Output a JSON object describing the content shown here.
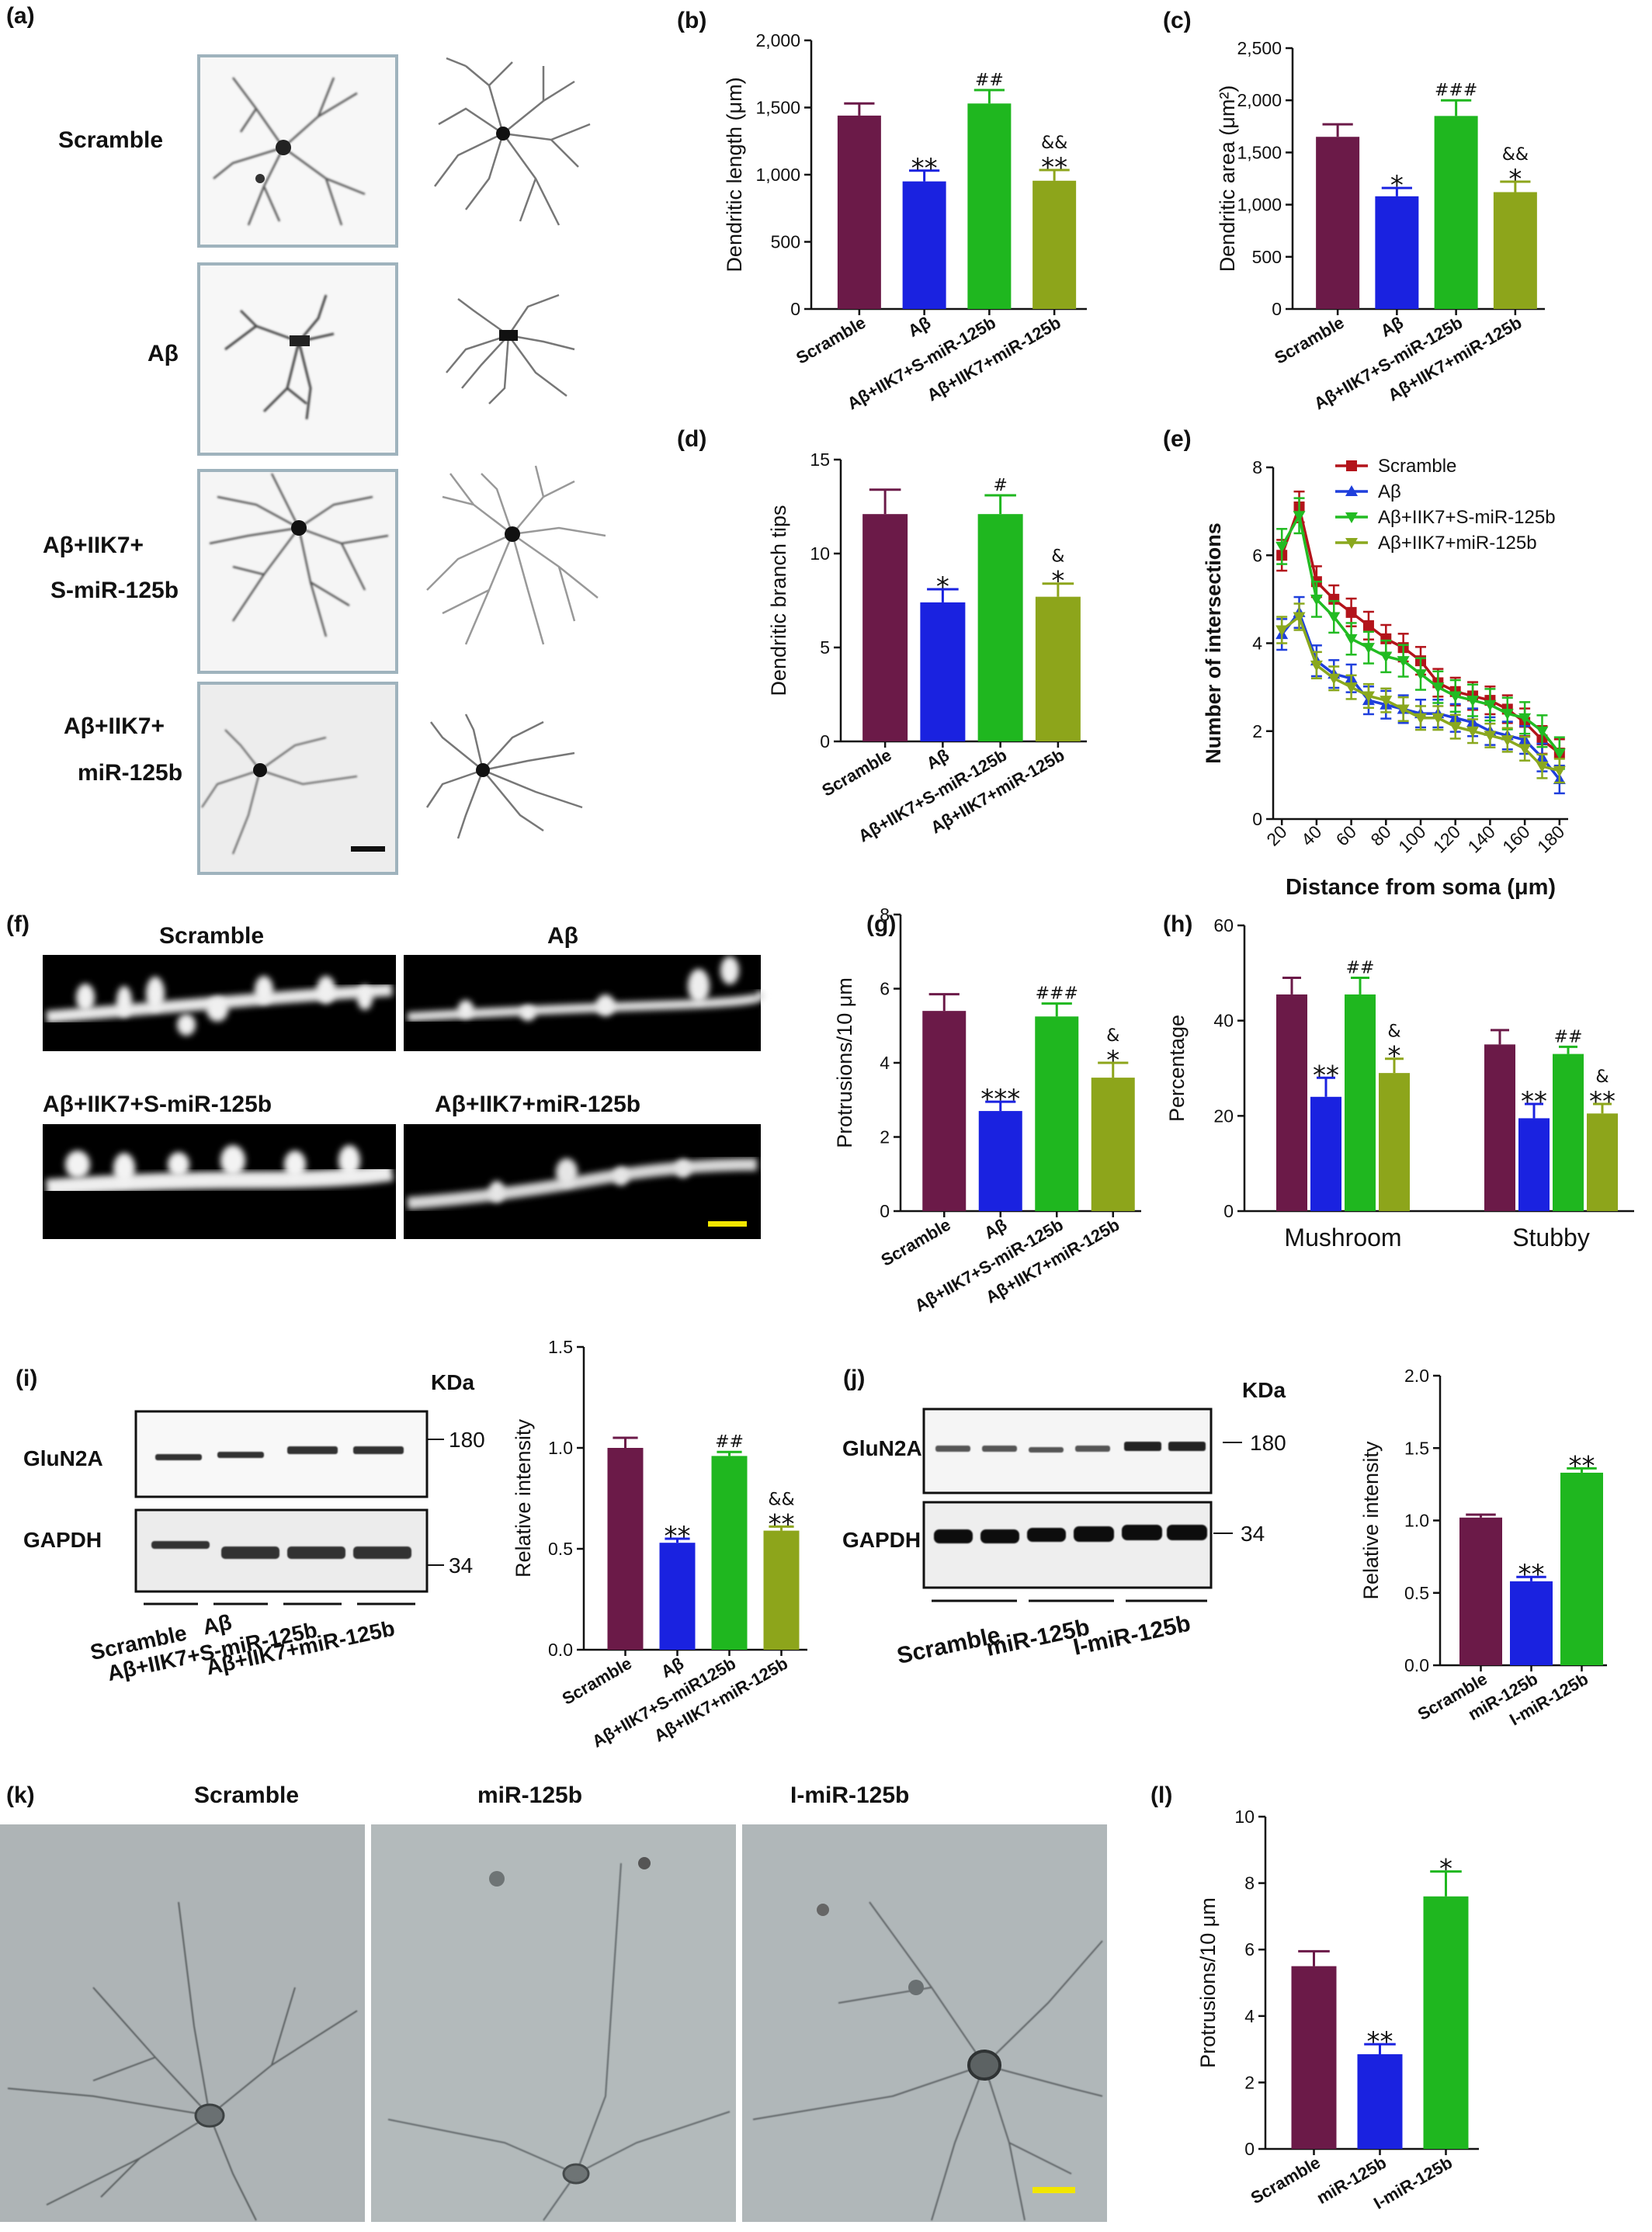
{
  "colors": {
    "scramble": "#6b1a48",
    "abeta": "#1a22e0",
    "abeta_iik7_s": "#1fb71f",
    "abeta_iik7_mir": "#8da51b",
    "line_scramble": "#b3141b",
    "line_abeta": "#1f3fdc",
    "line_s": "#22bb22",
    "line_mir": "#8aa81e",
    "scalebar_yellow": "#f2e600"
  },
  "panel_labels": [
    "(a)",
    "(b)",
    "(c)",
    "(d)",
    "(e)",
    "(f)",
    "(g)",
    "(h)",
    "(i)",
    "(j)",
    "(k)",
    "(l)"
  ],
  "panel_a": {
    "rows": [
      "Scramble",
      "Aβ",
      "Aβ+IIK7+\nS-miR-125b",
      "Aβ+IIK7+\nmiR-125b"
    ]
  },
  "panel_f": {
    "titles": [
      "Scramble",
      "Aβ",
      "Aβ+IIK7+S-miR-125b",
      "Aβ+IIK7+miR-125b"
    ]
  },
  "panel_i": {
    "kda": "KDa",
    "bands": [
      "GluN2A",
      "GAPDH"
    ],
    "markers": [
      "180",
      "34"
    ],
    "lanes": [
      "Scramble",
      "Aβ",
      "Aβ+IIK7+S-miR-125b",
      "Aβ+IIK7+miR-125b"
    ]
  },
  "panel_j": {
    "kda": "KDa",
    "bands": [
      "GluN2A",
      "GAPDH"
    ],
    "markers": [
      "180",
      "34"
    ],
    "lanes": [
      "Scramble",
      "miR-125b",
      "I-miR-125b"
    ]
  },
  "panel_k": {
    "titles": [
      "Scramble",
      "miR-125b",
      "I-miR-125b"
    ]
  },
  "chart_data": [
    {
      "id": "b",
      "type": "bar",
      "categories": [
        "Scramble",
        "Aβ",
        "Aβ+IIK7+S-miR-125b",
        "Aβ+IIK7+miR-125b"
      ],
      "values": [
        1440,
        950,
        1530,
        955
      ],
      "errors": [
        90,
        80,
        100,
        80
      ],
      "significance": [
        "",
        "**",
        "##",
        "&&\n**"
      ],
      "ylabel": "Dendritic length (μm)",
      "yticks": [
        "0",
        "500",
        "1,000",
        "1,500",
        "2,000"
      ],
      "ylim": [
        0,
        2000
      ]
    },
    {
      "id": "c",
      "type": "bar",
      "categories": [
        "Scramble",
        "Aβ",
        "Aβ+IIK7+S-miR-125b",
        "Aβ+IIK7+miR-125b"
      ],
      "values": [
        1650,
        1080,
        1850,
        1120
      ],
      "errors": [
        120,
        80,
        150,
        100
      ],
      "significance": [
        "",
        "*",
        "###",
        "&&\n*"
      ],
      "ylabel": "Dendritic area (μm²)",
      "yticks": [
        "0",
        "500",
        "1,000",
        "1,500",
        "2,000",
        "2,500"
      ],
      "ylim": [
        0,
        2500
      ]
    },
    {
      "id": "d",
      "type": "bar",
      "categories": [
        "Scramble",
        "Aβ",
        "Aβ+IIK7+S-miR-125b",
        "Aβ+IIK7+miR-125b"
      ],
      "values": [
        12.1,
        7.4,
        12.1,
        7.7
      ],
      "errors": [
        1.3,
        0.7,
        1.0,
        0.7
      ],
      "significance": [
        "",
        "*",
        "#",
        "&\n*"
      ],
      "ylabel": "Dendritic branch tips",
      "yticks": [
        "0",
        "5",
        "10",
        "15"
      ],
      "ylim": [
        0,
        15
      ]
    },
    {
      "id": "e",
      "type": "line",
      "x": [
        20,
        30,
        40,
        50,
        60,
        70,
        80,
        90,
        100,
        110,
        120,
        130,
        140,
        150,
        160,
        170,
        180
      ],
      "series": [
        {
          "name": "Scramble",
          "values": [
            6.0,
            7.1,
            5.4,
            5.0,
            4.7,
            4.4,
            4.1,
            3.9,
            3.6,
            3.1,
            2.9,
            2.8,
            2.7,
            2.5,
            2.2,
            1.8,
            1.5
          ]
        },
        {
          "name": "Aβ",
          "values": [
            4.2,
            4.7,
            3.6,
            3.3,
            3.2,
            2.7,
            2.6,
            2.5,
            2.4,
            2.4,
            2.3,
            2.2,
            2.0,
            1.9,
            1.8,
            1.4,
            0.9
          ]
        },
        {
          "name": "Aβ+IIK7+S-miR-125b",
          "values": [
            6.2,
            6.9,
            5.0,
            4.6,
            4.1,
            3.9,
            3.7,
            3.6,
            3.3,
            3.0,
            2.8,
            2.7,
            2.6,
            2.4,
            2.3,
            2.0,
            1.5
          ]
        },
        {
          "name": "Aβ+IIK7+miR-125b",
          "values": [
            4.3,
            4.6,
            3.5,
            3.2,
            3.0,
            2.8,
            2.7,
            2.5,
            2.3,
            2.3,
            2.1,
            2.0,
            1.9,
            1.8,
            1.6,
            1.2,
            1.1
          ]
        }
      ],
      "xlabel": "Distance from soma (μm)",
      "ylabel": "Number of intersections",
      "xticks": [
        "20",
        "40",
        "60",
        "80",
        "100",
        "120",
        "140",
        "160",
        "180"
      ],
      "yticks": [
        "0",
        "2",
        "4",
        "6",
        "8"
      ],
      "xlim": [
        15,
        185
      ],
      "ylim": [
        0,
        8
      ]
    },
    {
      "id": "g",
      "type": "bar",
      "categories": [
        "Scramble",
        "Aβ",
        "Aβ+IIK7+S-miR-125b",
        "Aβ+IIK7+miR-125b"
      ],
      "values": [
        5.4,
        2.7,
        5.25,
        3.6
      ],
      "errors": [
        0.45,
        0.25,
        0.35,
        0.4
      ],
      "significance": [
        "",
        "***",
        "###",
        "&\n*"
      ],
      "ylabel": "Protrusions/10 μm",
      "yticks": [
        "0",
        "2",
        "4",
        "6",
        "8"
      ],
      "ylim": [
        0,
        8
      ]
    },
    {
      "id": "h",
      "type": "bar",
      "categories": [
        "Mushroom",
        "Stubby"
      ],
      "series": [
        {
          "name": "Scramble",
          "values": [
            45.5,
            35
          ],
          "errors": [
            3.5,
            3
          ]
        },
        {
          "name": "Aβ",
          "values": [
            24,
            19.5
          ],
          "errors": [
            4,
            3
          ]
        },
        {
          "name": "Aβ+IIK7+S-miR-125b",
          "values": [
            45.5,
            33
          ],
          "errors": [
            3.5,
            1.5
          ]
        },
        {
          "name": "Aβ+IIK7+miR-125b",
          "values": [
            29,
            20.5
          ],
          "errors": [
            3,
            2
          ]
        }
      ],
      "significance": [
        [
          "",
          "**",
          "##",
          "&\n*"
        ],
        [
          "",
          "**",
          "##",
          "&\n**"
        ]
      ],
      "ylabel": "Percentage",
      "yticks": [
        "0",
        "20",
        "40",
        "60"
      ],
      "ylim": [
        0,
        60
      ]
    },
    {
      "id": "i",
      "type": "bar",
      "categories": [
        "Scramble",
        "Aβ",
        "Aβ+IIK7+S-miR125b",
        "Aβ+IIK7+miR-125b"
      ],
      "values": [
        1.0,
        0.53,
        0.96,
        0.59
      ],
      "errors": [
        0.05,
        0.02,
        0.02,
        0.02
      ],
      "significance": [
        "",
        "**",
        "##",
        "&&\n**"
      ],
      "ylabel": "Relative intensity",
      "yticks": [
        "0.0",
        "0.5",
        "1.0",
        "1.5"
      ],
      "ylim": [
        0,
        1.5
      ]
    },
    {
      "id": "j",
      "type": "bar",
      "categories": [
        "Scramble",
        "miR-125b",
        "I-miR-125b"
      ],
      "values": [
        1.02,
        0.58,
        1.33
      ],
      "errors": [
        0.02,
        0.03,
        0.03
      ],
      "significance": [
        "",
        "**",
        "**"
      ],
      "ylabel": "Relative intensity",
      "yticks": [
        "0.0",
        "0.5",
        "1.0",
        "1.5",
        "2.0"
      ],
      "ylim": [
        0,
        2.0
      ]
    },
    {
      "id": "l",
      "type": "bar",
      "categories": [
        "Scramble",
        "miR-125b",
        "I-miR-125b"
      ],
      "values": [
        5.5,
        2.85,
        7.6
      ],
      "errors": [
        0.45,
        0.3,
        0.75
      ],
      "significance": [
        "",
        "**",
        "*"
      ],
      "ylabel": "Protrusions/10 μm",
      "yticks": [
        "0",
        "2",
        "4",
        "6",
        "8",
        "10"
      ],
      "ylim": [
        0,
        10
      ]
    }
  ]
}
